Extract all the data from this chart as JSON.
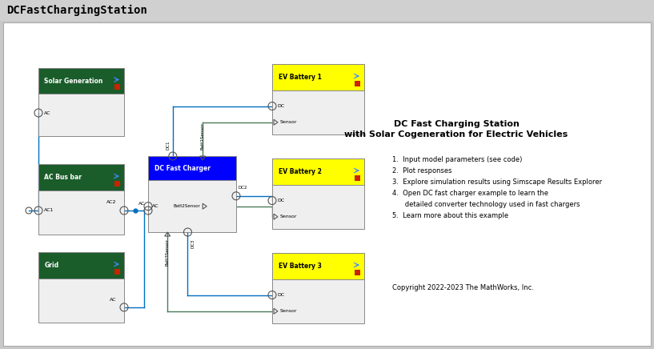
{
  "title": "DCFastChargingStation",
  "title_fontsize": 10,
  "title_fontweight": "bold",
  "bg_outer": "#c8c8c8",
  "bg_inner": "#ffffff",
  "dark_green": "#1a5c2a",
  "yellow": "#ffff00",
  "blue_line": "#0070c0",
  "green_line": "#4a7c59",
  "dc_fast_charger_blue": "#0000ff",
  "main_title_line1": "DC Fast Charging Station",
  "main_title_line2": "with Solar Cogeneration for Electric Vehicles",
  "main_title_fontsize": 8,
  "steps": [
    "1.  Input model parameters (see code)",
    "2.  Plot responses",
    "3.  Explore simulation results using Simscape Results Explorer",
    "4.  Open DC fast charger example to learn the",
    "      detailed converter technology used in fast chargers",
    "5.  Learn more about this example"
  ],
  "copyright": "Copyright 2022-2023 The MathWorks, Inc."
}
